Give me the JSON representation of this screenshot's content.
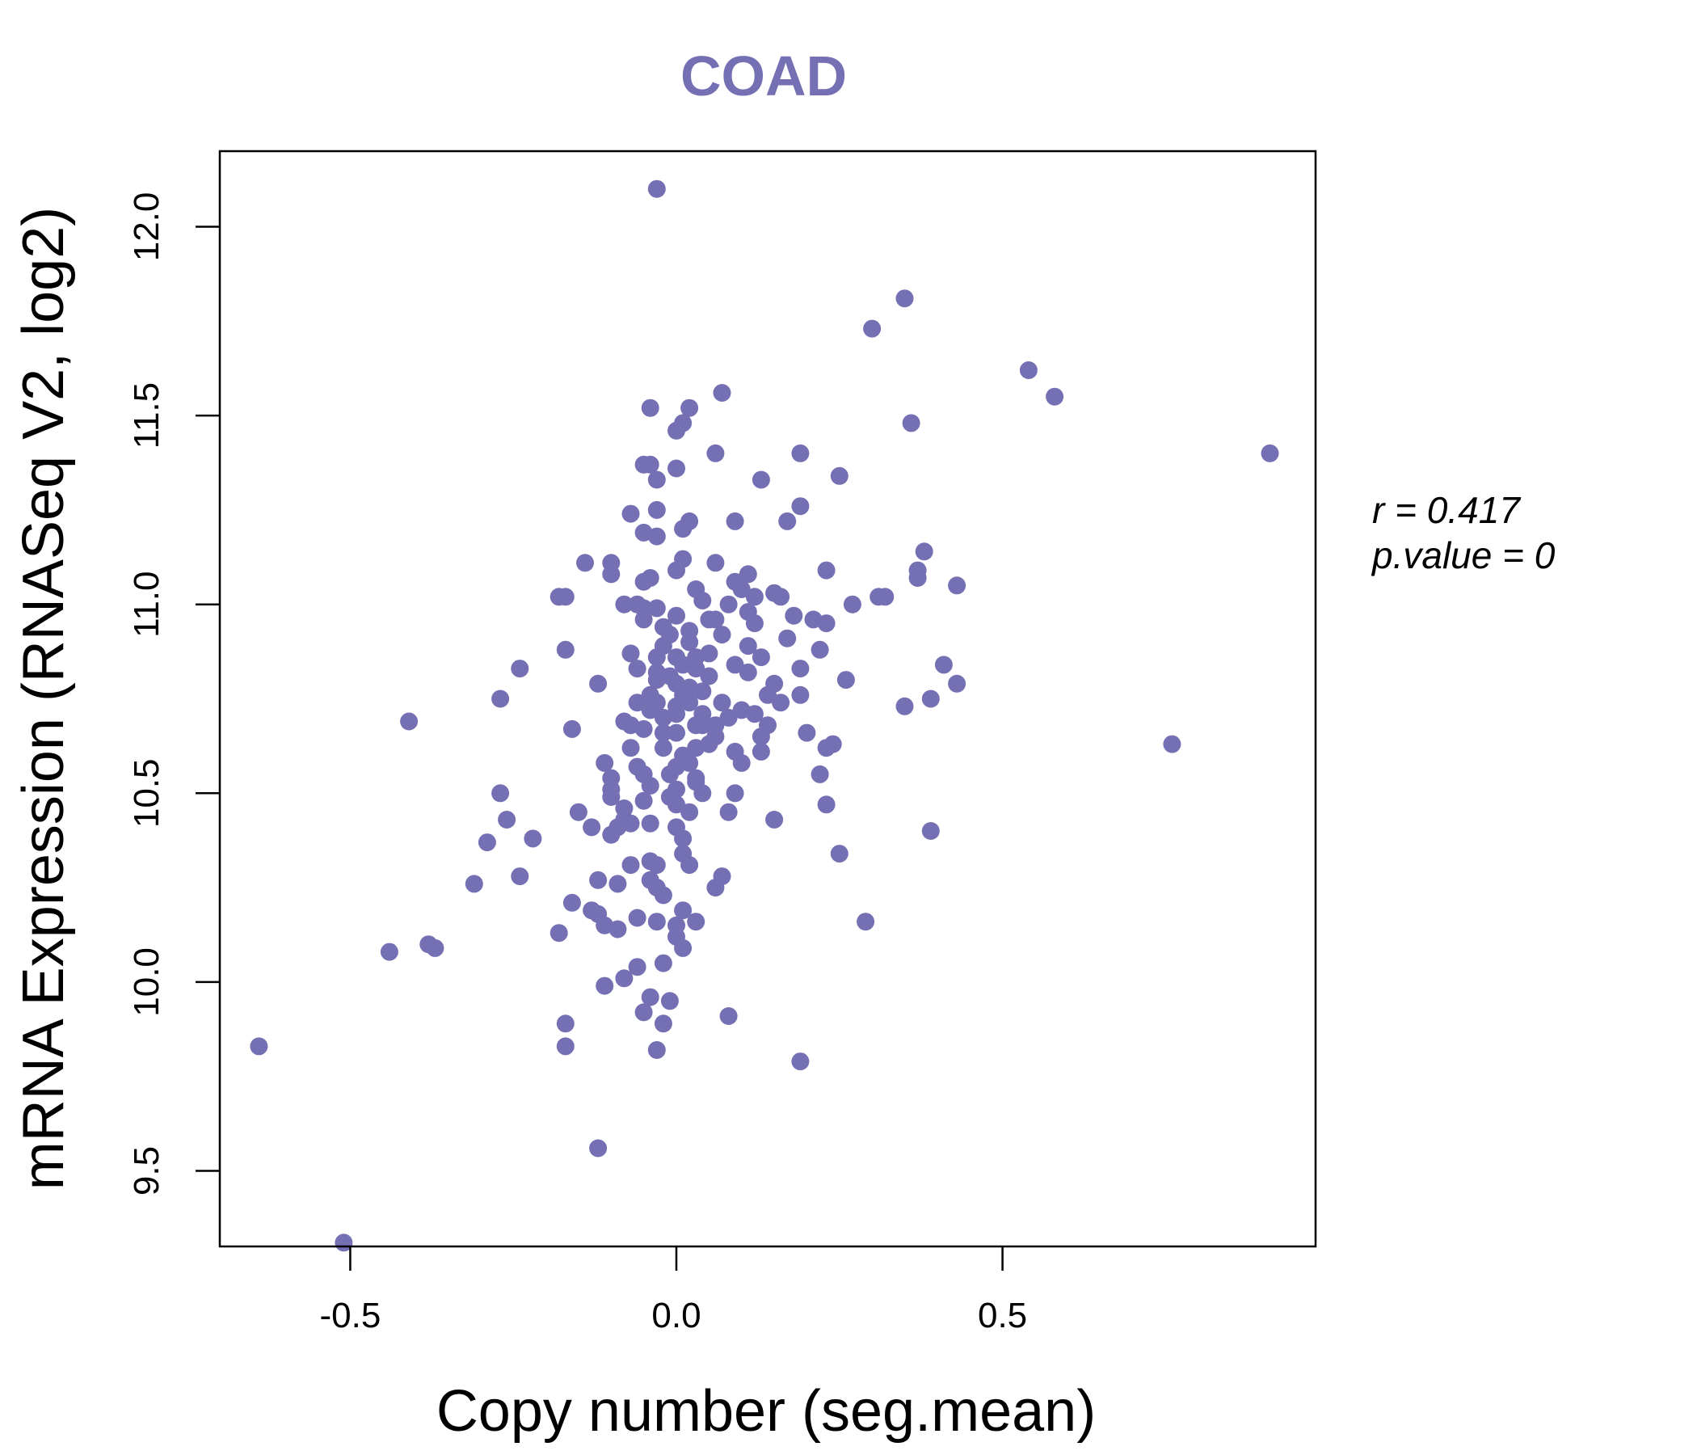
{
  "chart_data": {
    "type": "scatter",
    "title": "COAD",
    "xlabel": "Copy number (seg.mean)",
    "ylabel": "mRNA Expression (RNASeq V2, log2)",
    "xlim": [
      -0.7,
      0.98
    ],
    "ylim": [
      9.3,
      12.2
    ],
    "xticks": [
      -0.5,
      0.0,
      0.5
    ],
    "yticks": [
      9.5,
      10.0,
      10.5,
      11.0,
      11.5,
      12.0
    ],
    "xtick_labels": [
      "-0.5",
      "0.0",
      "0.5"
    ],
    "ytick_labels": [
      "9.5",
      "10.0",
      "10.5",
      "11.0",
      "11.5",
      "12.0"
    ],
    "grid": false,
    "annotations": {
      "r_text": "r = 0.417",
      "p_text": "p.value = 0"
    },
    "colors": {
      "points": "#7570b3",
      "title": "#7570b3",
      "axes": "#000000"
    },
    "series": [
      {
        "points": [
          [
            -0.03,
            12.1
          ],
          [
            0.35,
            11.81
          ],
          [
            0.3,
            11.73
          ],
          [
            0.54,
            11.62
          ],
          [
            0.58,
            11.55
          ],
          [
            0.07,
            11.56
          ],
          [
            0.36,
            11.48
          ],
          [
            0.91,
            11.4
          ],
          [
            0.76,
            10.63
          ],
          [
            -0.04,
            11.52
          ],
          [
            0.02,
            11.52
          ],
          [
            0.01,
            11.48
          ],
          [
            0.0,
            11.46
          ],
          [
            0.06,
            11.4
          ],
          [
            0.19,
            11.4
          ],
          [
            -0.05,
            11.37
          ],
          [
            -0.04,
            11.37
          ],
          [
            0.0,
            11.36
          ],
          [
            -0.03,
            11.33
          ],
          [
            0.13,
            11.33
          ],
          [
            0.25,
            11.34
          ],
          [
            0.19,
            11.26
          ],
          [
            -0.07,
            11.24
          ],
          [
            -0.03,
            11.25
          ],
          [
            0.02,
            11.22
          ],
          [
            0.09,
            11.22
          ],
          [
            0.17,
            11.22
          ],
          [
            -0.05,
            11.19
          ],
          [
            -0.03,
            11.18
          ],
          [
            0.01,
            11.2
          ],
          [
            0.38,
            11.14
          ],
          [
            -0.14,
            11.11
          ],
          [
            -0.1,
            11.11
          ],
          [
            0.01,
            11.12
          ],
          [
            0.06,
            11.11
          ],
          [
            -0.1,
            11.08
          ],
          [
            -0.04,
            11.07
          ],
          [
            0.0,
            11.09
          ],
          [
            0.09,
            11.06
          ],
          [
            0.11,
            11.08
          ],
          [
            0.23,
            11.09
          ],
          [
            0.37,
            11.09
          ],
          [
            0.37,
            11.07
          ],
          [
            0.43,
            11.05
          ],
          [
            -0.05,
            11.06
          ],
          [
            0.03,
            11.04
          ],
          [
            0.1,
            11.04
          ],
          [
            0.15,
            11.03
          ],
          [
            -0.18,
            11.02
          ],
          [
            -0.17,
            11.02
          ],
          [
            -0.08,
            11.0
          ],
          [
            0.04,
            11.01
          ],
          [
            0.12,
            11.02
          ],
          [
            0.16,
            11.02
          ],
          [
            0.27,
            11.0
          ],
          [
            0.31,
            11.02
          ],
          [
            0.32,
            11.02
          ],
          [
            -0.05,
            10.99
          ],
          [
            -0.03,
            10.99
          ],
          [
            0.0,
            10.97
          ],
          [
            0.06,
            10.96
          ],
          [
            0.11,
            10.98
          ],
          [
            0.18,
            10.97
          ],
          [
            0.21,
            10.96
          ],
          [
            0.23,
            10.95
          ],
          [
            -0.05,
            10.96
          ],
          [
            -0.02,
            10.94
          ],
          [
            0.02,
            10.93
          ],
          [
            0.07,
            10.92
          ],
          [
            -0.17,
            10.88
          ],
          [
            -0.07,
            10.87
          ],
          [
            -0.03,
            10.86
          ],
          [
            0.0,
            10.86
          ],
          [
            0.05,
            10.87
          ],
          [
            0.13,
            10.86
          ],
          [
            0.22,
            10.88
          ],
          [
            -0.24,
            10.83
          ],
          [
            -0.06,
            10.83
          ],
          [
            -0.03,
            10.82
          ],
          [
            0.03,
            10.83
          ],
          [
            0.09,
            10.84
          ],
          [
            0.11,
            10.82
          ],
          [
            0.19,
            10.83
          ],
          [
            0.41,
            10.84
          ],
          [
            -0.12,
            10.79
          ],
          [
            -0.03,
            10.8
          ],
          [
            0.0,
            10.79
          ],
          [
            0.05,
            10.81
          ],
          [
            0.15,
            10.79
          ],
          [
            0.26,
            10.8
          ],
          [
            0.43,
            10.79
          ],
          [
            -0.04,
            10.76
          ],
          [
            0.01,
            10.76
          ],
          [
            0.04,
            10.77
          ],
          [
            0.14,
            10.76
          ],
          [
            0.19,
            10.76
          ],
          [
            -0.27,
            10.75
          ],
          [
            -0.03,
            10.74
          ],
          [
            0.02,
            10.74
          ],
          [
            0.07,
            10.74
          ],
          [
            0.16,
            10.74
          ],
          [
            0.39,
            10.75
          ],
          [
            0.35,
            10.73
          ],
          [
            -0.04,
            10.72
          ],
          [
            0.0,
            10.71
          ],
          [
            0.04,
            10.71
          ],
          [
            0.1,
            10.72
          ],
          [
            0.12,
            10.71
          ],
          [
            -0.41,
            10.69
          ],
          [
            -0.08,
            10.69
          ],
          [
            -0.07,
            10.68
          ],
          [
            -0.02,
            10.7
          ],
          [
            0.03,
            10.68
          ],
          [
            0.06,
            10.68
          ],
          [
            0.14,
            10.68
          ],
          [
            -0.16,
            10.67
          ],
          [
            -0.05,
            10.67
          ],
          [
            0.0,
            10.66
          ],
          [
            0.06,
            10.65
          ],
          [
            0.13,
            10.65
          ],
          [
            0.2,
            10.66
          ],
          [
            0.24,
            10.63
          ],
          [
            -0.07,
            10.62
          ],
          [
            -0.02,
            10.62
          ],
          [
            0.03,
            10.62
          ],
          [
            0.09,
            10.61
          ],
          [
            0.13,
            10.61
          ],
          [
            0.23,
            10.62
          ],
          [
            -0.11,
            10.58
          ],
          [
            -0.06,
            10.57
          ],
          [
            0.0,
            10.57
          ],
          [
            0.02,
            10.58
          ],
          [
            -0.1,
            10.54
          ],
          [
            -0.05,
            10.55
          ],
          [
            -0.01,
            10.55
          ],
          [
            0.03,
            10.54
          ],
          [
            0.22,
            10.55
          ],
          [
            -0.1,
            10.51
          ],
          [
            -0.04,
            10.52
          ],
          [
            0.0,
            10.51
          ],
          [
            0.04,
            10.5
          ],
          [
            0.09,
            10.5
          ],
          [
            -0.27,
            10.5
          ],
          [
            -0.1,
            10.49
          ],
          [
            -0.05,
            10.48
          ],
          [
            0.0,
            10.47
          ],
          [
            -0.08,
            10.46
          ],
          [
            0.02,
            10.45
          ],
          [
            0.08,
            10.45
          ],
          [
            0.23,
            10.47
          ],
          [
            -0.15,
            10.45
          ],
          [
            -0.26,
            10.43
          ],
          [
            -0.08,
            10.43
          ],
          [
            -0.04,
            10.42
          ],
          [
            0.0,
            10.41
          ],
          [
            0.15,
            10.43
          ],
          [
            -0.13,
            10.41
          ],
          [
            -0.09,
            10.41
          ],
          [
            -0.07,
            10.42
          ],
          [
            -0.1,
            10.39
          ],
          [
            0.01,
            10.38
          ],
          [
            0.39,
            10.4
          ],
          [
            -0.22,
            10.38
          ],
          [
            -0.29,
            10.37
          ],
          [
            0.01,
            10.34
          ],
          [
            0.25,
            10.34
          ],
          [
            -0.04,
            10.32
          ],
          [
            -0.03,
            10.31
          ],
          [
            -0.07,
            10.31
          ],
          [
            0.02,
            10.31
          ],
          [
            -0.24,
            10.28
          ],
          [
            -0.12,
            10.27
          ],
          [
            -0.04,
            10.27
          ],
          [
            -0.03,
            10.25
          ],
          [
            0.06,
            10.25
          ],
          [
            0.07,
            10.28
          ],
          [
            -0.31,
            10.26
          ],
          [
            -0.09,
            10.26
          ],
          [
            -0.02,
            10.23
          ],
          [
            -0.16,
            10.21
          ],
          [
            -0.13,
            10.19
          ],
          [
            -0.12,
            10.18
          ],
          [
            0.01,
            10.19
          ],
          [
            0.0,
            10.15
          ],
          [
            0.03,
            10.16
          ],
          [
            -0.06,
            10.17
          ],
          [
            -0.03,
            10.16
          ],
          [
            -0.11,
            10.15
          ],
          [
            -0.09,
            10.14
          ],
          [
            -0.18,
            10.13
          ],
          [
            0.0,
            10.12
          ],
          [
            0.29,
            10.16
          ],
          [
            0.01,
            10.09
          ],
          [
            -0.38,
            10.1
          ],
          [
            -0.37,
            10.09
          ],
          [
            -0.44,
            10.08
          ],
          [
            -0.06,
            10.04
          ],
          [
            -0.02,
            10.05
          ],
          [
            -0.08,
            10.01
          ],
          [
            -0.11,
            9.99
          ],
          [
            -0.04,
            9.96
          ],
          [
            -0.01,
            9.95
          ],
          [
            0.08,
            9.91
          ],
          [
            -0.05,
            9.92
          ],
          [
            -0.02,
            9.89
          ],
          [
            -0.17,
            9.89
          ],
          [
            -0.64,
            9.83
          ],
          [
            -0.17,
            9.83
          ],
          [
            -0.03,
            9.82
          ],
          [
            0.19,
            9.79
          ],
          [
            -0.12,
            9.56
          ],
          [
            -0.51,
            9.31
          ],
          [
            0.02,
            10.9
          ],
          [
            -0.01,
            10.92
          ],
          [
            0.05,
            10.96
          ],
          [
            -0.02,
            10.89
          ],
          [
            0.01,
            10.84
          ],
          [
            0.03,
            10.86
          ],
          [
            -0.01,
            10.81
          ],
          [
            0.02,
            10.78
          ],
          [
            0.0,
            10.73
          ],
          [
            0.04,
            10.68
          ],
          [
            -0.02,
            10.66
          ],
          [
            0.01,
            10.6
          ],
          [
            0.03,
            10.53
          ],
          [
            -0.01,
            10.49
          ],
          [
            0.05,
            10.63
          ],
          [
            0.08,
            10.7
          ],
          [
            -0.06,
            10.74
          ],
          [
            0.1,
            10.58
          ],
          [
            0.12,
            10.95
          ],
          [
            0.08,
            11.0
          ],
          [
            -0.06,
            11.0
          ],
          [
            0.17,
            10.91
          ],
          [
            0.11,
            10.89
          ]
        ]
      }
    ]
  }
}
